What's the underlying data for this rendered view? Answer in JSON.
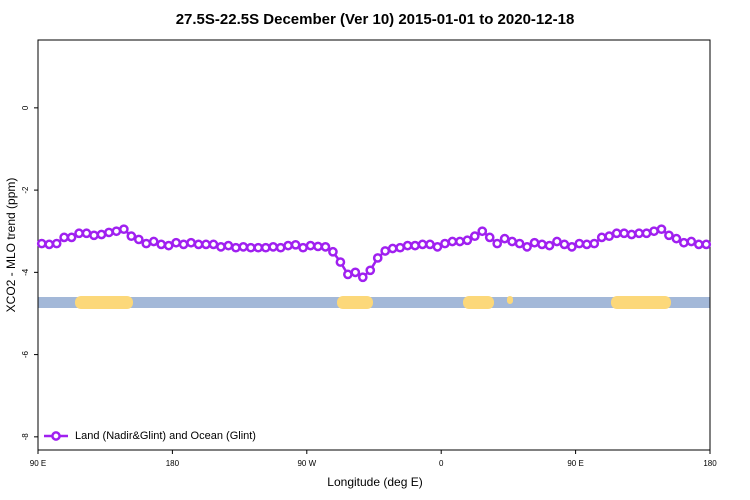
{
  "chart_data": {
    "type": "line",
    "title": "27.5S-22.5S December (Ver 10)   2015-01-01 to 2020-12-18",
    "x_label": "Longitude (deg E)",
    "y_label": "XCO2 - MLO trend (ppm)",
    "xlim": [
      90,
      540
    ],
    "xticks": [
      {
        "value": 90,
        "label": "90 E"
      },
      180,
      {
        "value": 270,
        "label": "90 W"
      },
      {
        "value": 360,
        "label": "0"
      },
      {
        "value": 450,
        "label": "90 E"
      },
      {
        "value": 540,
        "label": "180"
      }
    ],
    "ylim": [
      -8.32,
      1.65
    ],
    "yticks": [
      0,
      -2,
      -4,
      -6,
      -8
    ],
    "grid": false,
    "legend": "bottom-left",
    "x": [
      92.5,
      97.5,
      102.5,
      107.5,
      112.5,
      117.5,
      122.5,
      127.5,
      132.5,
      137.5,
      142.5,
      147.5,
      152.5,
      157.5,
      162.5,
      167.5,
      172.5,
      177.5,
      182.5,
      187.5,
      192.5,
      197.5,
      202.5,
      207.5,
      212.5,
      217.5,
      222.5,
      227.5,
      232.5,
      237.5,
      242.5,
      247.5,
      252.5,
      257.5,
      262.5,
      267.5,
      272.5,
      277.5,
      282.5,
      287.5,
      292.5,
      297.5,
      302.5,
      307.5,
      312.5,
      317.5,
      322.5,
      327.5,
      332.5,
      337.5,
      342.5,
      347.5,
      352.5,
      357.5,
      362.5,
      367.5,
      372.5,
      377.5,
      382.5,
      387.5,
      392.5,
      397.5,
      402.5,
      407.5,
      412.5,
      417.5,
      422.5,
      427.5,
      432.5,
      437.5,
      442.5,
      447.5,
      452.5,
      457.5,
      462.5,
      467.5,
      472.5,
      477.5,
      482.5,
      487.5,
      492.5,
      497.5,
      502.5,
      507.5,
      512.5,
      517.5,
      522.5,
      527.5,
      532.5,
      537.5
    ],
    "series": [
      {
        "name": "Land (Nadir&Glint) and Ocean (Glint)",
        "color": "#a020f0",
        "values": [
          -3.3,
          -3.32,
          -3.3,
          -3.15,
          -3.15,
          -3.05,
          -3.05,
          -3.1,
          -3.08,
          -3.03,
          -3.0,
          -2.95,
          -3.12,
          -3.2,
          -3.3,
          -3.25,
          -3.32,
          -3.35,
          -3.28,
          -3.32,
          -3.28,
          -3.32,
          -3.32,
          -3.32,
          -3.38,
          -3.35,
          -3.4,
          -3.38,
          -3.4,
          -3.4,
          -3.4,
          -3.38,
          -3.4,
          -3.35,
          -3.33,
          -3.4,
          -3.35,
          -3.37,
          -3.38,
          -3.5,
          -3.75,
          -4.05,
          -4.0,
          -4.12,
          -3.95,
          -3.65,
          -3.48,
          -3.42,
          -3.4,
          -3.35,
          -3.35,
          -3.32,
          -3.32,
          -3.38,
          -3.3,
          -3.25,
          -3.25,
          -3.22,
          -3.12,
          -3.0,
          -3.15,
          -3.3,
          -3.18,
          -3.25,
          -3.3,
          -3.38,
          -3.28,
          -3.32,
          -3.35,
          -3.25,
          -3.32,
          -3.38,
          -3.3,
          -3.32,
          -3.3,
          -3.15,
          -3.12,
          -3.05,
          -3.05,
          -3.08,
          -3.05,
          -3.05,
          -3.0,
          -2.95,
          -3.1,
          -3.18,
          -3.28,
          -3.25,
          -3.32,
          -3.32
        ]
      }
    ]
  }
}
